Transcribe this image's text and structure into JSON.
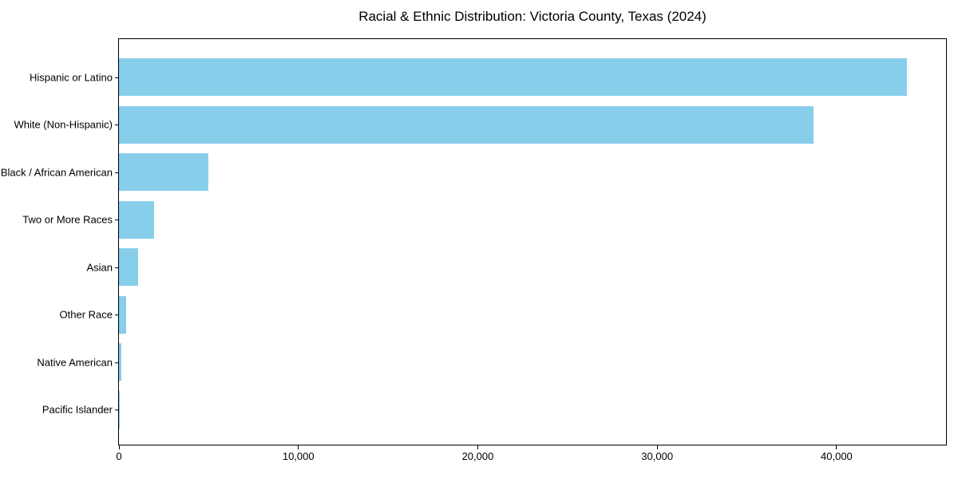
{
  "chart_data": {
    "type": "bar",
    "orientation": "horizontal",
    "title": "Racial & Ethnic Distribution: Victoria County, Texas (2024)",
    "categories": [
      "Hispanic or Latino",
      "White (Non-Hispanic)",
      "Black / African American",
      "Two or More Races",
      "Asian",
      "Other Race",
      "Native American",
      "Pacific Islander"
    ],
    "values": [
      43900,
      38700,
      5000,
      1950,
      1070,
      400,
      150,
      30
    ],
    "xlabel": "",
    "ylabel": "",
    "xlim": [
      0,
      46100
    ],
    "x_ticks": [
      0,
      10000,
      20000,
      30000,
      40000
    ],
    "x_tick_labels": [
      "0",
      "10,000",
      "20,000",
      "30,000",
      "40,000"
    ],
    "bar_color": "#87CEEB",
    "axis_color": "#000000",
    "text_color": "#000000",
    "grid": false,
    "legend": null
  }
}
